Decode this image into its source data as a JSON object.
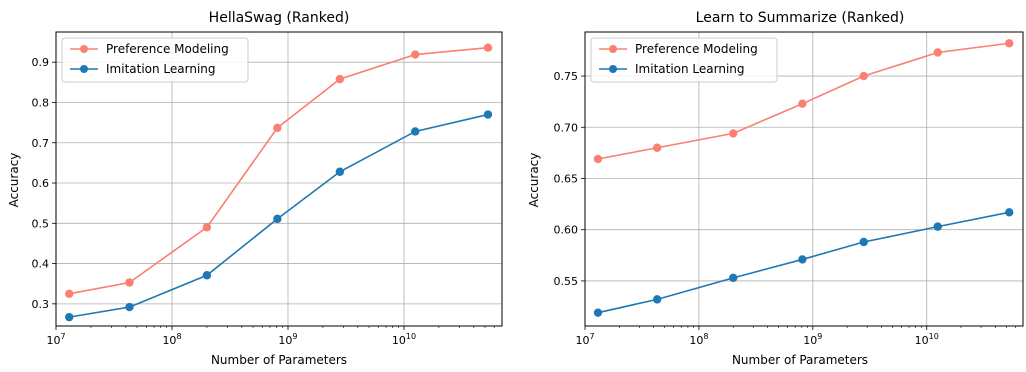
{
  "chart_data": [
    {
      "type": "line",
      "title": "HellaSwag (Ranked)",
      "xlabel": "Number of Parameters",
      "ylabel": "Accuracy",
      "xscale": "log",
      "xlim": [
        10000000.0,
        70000000000.0
      ],
      "ylim": [
        0.245,
        0.975
      ],
      "xticks": [
        10000000.0,
        100000000.0,
        1000000000.0,
        10000000000.0
      ],
      "xtick_labels": [
        {
          "base": "10",
          "exp": "7"
        },
        {
          "base": "10",
          "exp": "8"
        },
        {
          "base": "10",
          "exp": "9"
        },
        {
          "base": "10",
          "exp": "10"
        }
      ],
      "yticks": [
        0.3,
        0.4,
        0.5,
        0.6,
        0.7,
        0.8,
        0.9
      ],
      "ytick_labels": [
        "0.3",
        "0.4",
        "0.5",
        "0.6",
        "0.7",
        "0.8",
        "0.9"
      ],
      "grid": true,
      "legend": "upper left",
      "x": [
        13000000.0,
        43000000.0,
        200000000.0,
        810000000.0,
        2800000000.0,
        12500000000.0,
        53000000000.0
      ],
      "series": [
        {
          "name": "Preference Modeling",
          "color": "#fa8072",
          "values": [
            0.325,
            0.353,
            0.49,
            0.737,
            0.858,
            0.919,
            0.936
          ]
        },
        {
          "name": "Imitation Learning",
          "color": "#1f77b4",
          "values": [
            0.267,
            0.292,
            0.371,
            0.511,
            0.628,
            0.728,
            0.77
          ]
        }
      ]
    },
    {
      "type": "line",
      "title": "Learn to Summarize (Ranked)",
      "xlabel": "Number of Parameters",
      "ylabel": "Accuracy",
      "xscale": "log",
      "xlim": [
        10000000.0,
        70000000000.0
      ],
      "ylim": [
        0.506,
        0.793
      ],
      "xticks": [
        10000000.0,
        100000000.0,
        1000000000.0,
        10000000000.0
      ],
      "xtick_labels": [
        {
          "base": "10",
          "exp": "7"
        },
        {
          "base": "10",
          "exp": "8"
        },
        {
          "base": "10",
          "exp": "9"
        },
        {
          "base": "10",
          "exp": "10"
        }
      ],
      "yticks": [
        0.55,
        0.6,
        0.65,
        0.7,
        0.75
      ],
      "ytick_labels": [
        "0.55",
        "0.60",
        "0.65",
        "0.70",
        "0.75"
      ],
      "grid": true,
      "legend": "upper left",
      "x": [
        13000000.0,
        43000000.0,
        200000000.0,
        810000000.0,
        2800000000.0,
        12500000000.0,
        53000000000.0
      ],
      "series": [
        {
          "name": "Preference Modeling",
          "color": "#fa8072",
          "values": [
            0.669,
            0.68,
            0.694,
            0.723,
            0.75,
            0.773,
            0.782
          ]
        },
        {
          "name": "Imitation Learning",
          "color": "#1f77b4",
          "values": [
            0.519,
            0.532,
            0.553,
            0.571,
            0.588,
            0.603,
            0.617
          ]
        }
      ]
    }
  ]
}
